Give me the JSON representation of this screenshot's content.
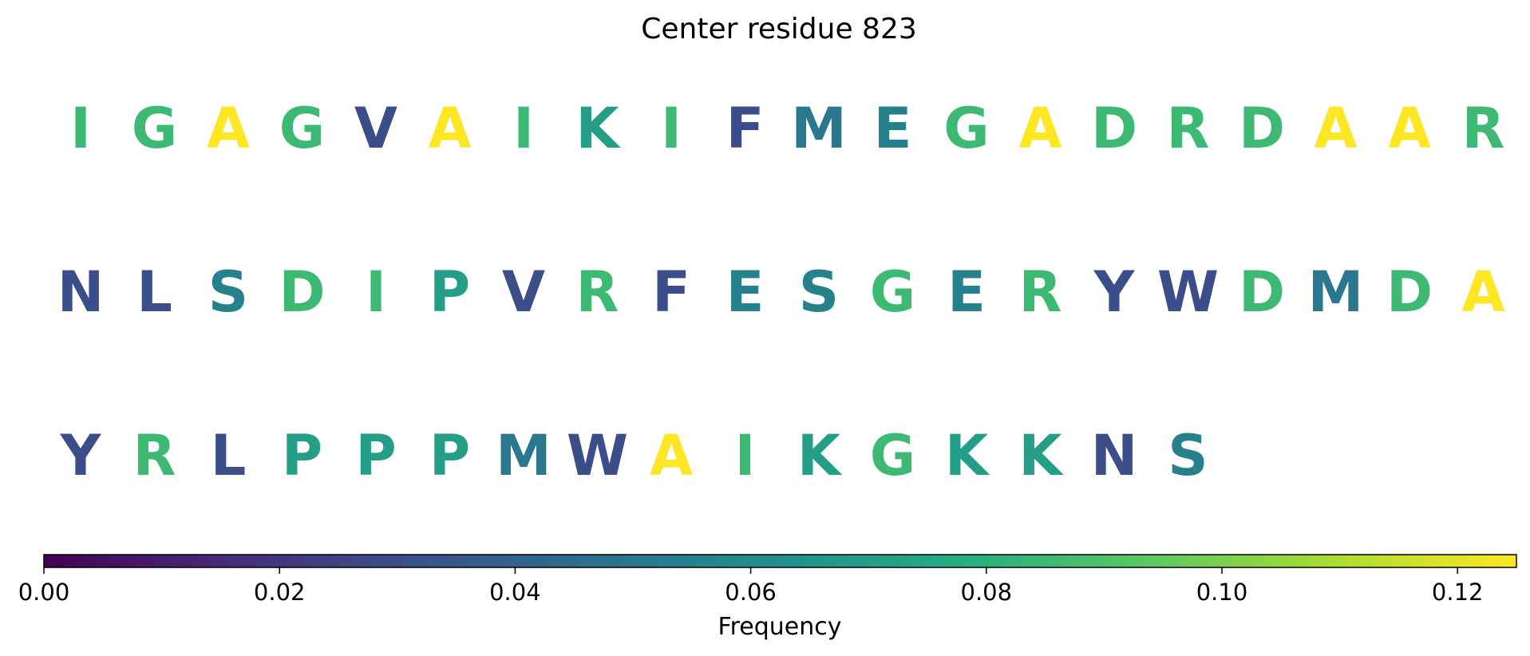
{
  "chart_data": {
    "type": "sequence-logo",
    "title": "Center residue 823",
    "rows": [
      [
        "I",
        "G",
        "A",
        "G",
        "V",
        "A",
        "I",
        "K",
        "I",
        "F",
        "M",
        "E",
        "G",
        "A",
        "D",
        "R",
        "D",
        "A",
        "A",
        "R"
      ],
      [
        "N",
        "L",
        "S",
        "D",
        "I",
        "P",
        "V",
        "R",
        "F",
        "E",
        "S",
        "G",
        "E",
        "R",
        "Y",
        "W",
        "D",
        "M",
        "D",
        "A"
      ],
      [
        "Y",
        "R",
        "L",
        "P",
        "P",
        "P",
        "M",
        "W",
        "A",
        "I",
        "K",
        "G",
        "K",
        "K",
        "N",
        "S"
      ]
    ],
    "frequencies": {
      "A": 0.125,
      "I": 0.085,
      "G": 0.085,
      "D": 0.085,
      "R": 0.085,
      "K": 0.07,
      "P": 0.07,
      "E": 0.055,
      "S": 0.055,
      "M": 0.05,
      "V": 0.03,
      "F": 0.03,
      "N": 0.03,
      "L": 0.03,
      "Y": 0.03,
      "W": 0.03
    },
    "colorbar": {
      "label": "Frequency",
      "range": [
        0,
        0.125
      ],
      "ticks": [
        0.0,
        0.02,
        0.04,
        0.06,
        0.08,
        0.1,
        0.12
      ],
      "tick_labels": [
        "0.00",
        "0.02",
        "0.04",
        "0.06",
        "0.08",
        "0.10",
        "0.12"
      ],
      "colormap": "viridis"
    }
  }
}
